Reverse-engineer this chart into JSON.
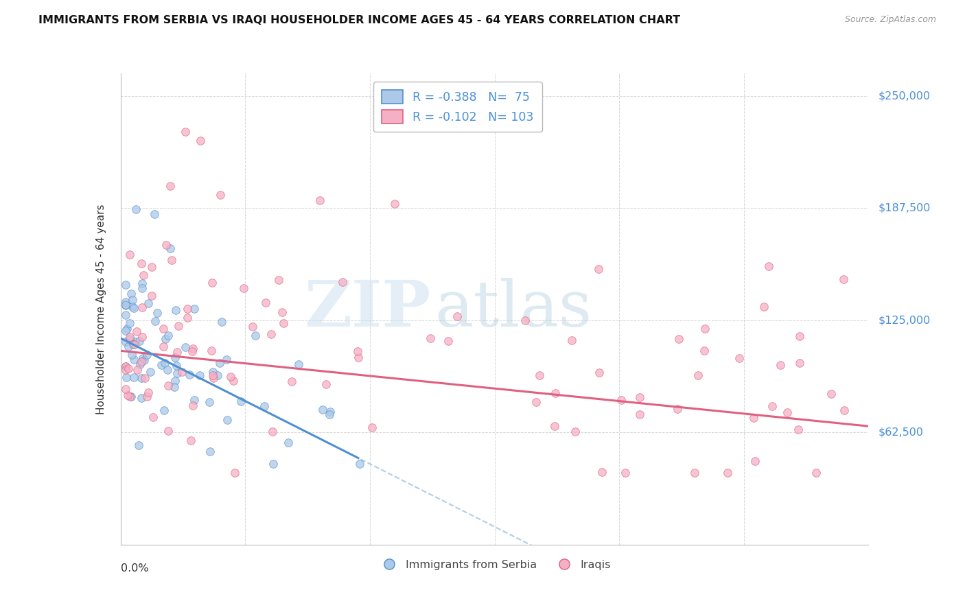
{
  "title": "IMMIGRANTS FROM SERBIA VS IRAQI HOUSEHOLDER INCOME AGES 45 - 64 YEARS CORRELATION CHART",
  "source": "Source: ZipAtlas.com",
  "ylabel": "Householder Income Ages 45 - 64 years",
  "ytick_labels": [
    "$62,500",
    "$125,000",
    "$187,500",
    "$250,000"
  ],
  "ytick_values": [
    62500,
    125000,
    187500,
    250000
  ],
  "xlim": [
    0.0,
    0.15
  ],
  "ylim": [
    0,
    262500
  ],
  "serbia_R": -0.388,
  "serbia_N": 75,
  "iraq_R": -0.102,
  "iraq_N": 103,
  "serbia_color": "#adc8e8",
  "iraq_color": "#f5b0c5",
  "serbia_line_color": "#5090d0",
  "iraq_line_color": "#e06080",
  "watermark_zip": "ZIP",
  "watermark_atlas": "atlas",
  "background_color": "#ffffff",
  "grid_color": "#cccccc",
  "legend_text_color": "#4a90d9",
  "serbia_line_intercept": 115000,
  "serbia_line_slope": -1400000,
  "iraq_line_intercept": 108000,
  "iraq_line_slope": -280000,
  "serbia_line_solid_end": 0.048,
  "serbia_line_dash_end": 0.15
}
